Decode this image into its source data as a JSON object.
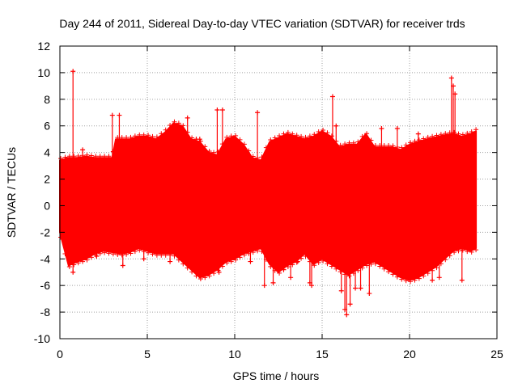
{
  "chart_data": {
    "type": "scatter",
    "title": "Day 244 of 2011, Sidereal Day-to-day VTEC variation (SDTVAR) for receiver trds",
    "xlabel": "GPS time / hours",
    "ylabel": "SDTVAR / TECUs",
    "xlim": [
      0,
      25
    ],
    "ylim": [
      -10,
      12
    ],
    "xticks": [
      "0",
      "5",
      "10",
      "15",
      "20",
      "25"
    ],
    "yticks": [
      "12",
      "10",
      "8",
      "6",
      "4",
      "2",
      "0",
      "-2",
      "-4",
      "-6",
      "-8",
      "-10"
    ],
    "grid": true,
    "marker": "+",
    "color": "#ff0000",
    "series": [
      {
        "name": "SDTVAR",
        "band_upper": [
          [
            0,
            3.4
          ],
          [
            0.5,
            3.6
          ],
          [
            1,
            3.6
          ],
          [
            1.5,
            3.7
          ],
          [
            2,
            3.6
          ],
          [
            2.5,
            3.6
          ],
          [
            3,
            3.6
          ],
          [
            3.2,
            5.0
          ],
          [
            3.5,
            5.0
          ],
          [
            4,
            5.0
          ],
          [
            4.5,
            5.2
          ],
          [
            5,
            5.2
          ],
          [
            5.5,
            5.0
          ],
          [
            6,
            5.5
          ],
          [
            6.5,
            6.2
          ],
          [
            7,
            6.0
          ],
          [
            7.5,
            5.0
          ],
          [
            8,
            4.8
          ],
          [
            8.5,
            4.0
          ],
          [
            9,
            3.8
          ],
          [
            9.5,
            5.0
          ],
          [
            10,
            5.2
          ],
          [
            10.5,
            4.6
          ],
          [
            11,
            3.6
          ],
          [
            11.5,
            3.4
          ],
          [
            12,
            4.8
          ],
          [
            13,
            5.4
          ],
          [
            14,
            5.0
          ],
          [
            14.5,
            5.2
          ],
          [
            15,
            5.6
          ],
          [
            15.5,
            5.2
          ],
          [
            16,
            4.4
          ],
          [
            16.5,
            4.6
          ],
          [
            17,
            4.6
          ],
          [
            17.5,
            5.4
          ],
          [
            18,
            4.4
          ],
          [
            18.5,
            4.4
          ],
          [
            19,
            4.4
          ],
          [
            19.5,
            4.2
          ],
          [
            20,
            4.6
          ],
          [
            21,
            5.0
          ],
          [
            22,
            5.3
          ],
          [
            22.5,
            5.4
          ],
          [
            23,
            5.2
          ],
          [
            23.5,
            5.4
          ],
          [
            23.8,
            5.6
          ]
        ],
        "band_lower": [
          [
            0,
            -2.0
          ],
          [
            0.5,
            -4.5
          ],
          [
            1,
            -4.2
          ],
          [
            1.5,
            -4.0
          ],
          [
            2,
            -3.6
          ],
          [
            2.5,
            -3.4
          ],
          [
            3,
            -3.5
          ],
          [
            3.5,
            -3.6
          ],
          [
            4,
            -3.5
          ],
          [
            4.5,
            -3.2
          ],
          [
            5,
            -3.4
          ],
          [
            5.5,
            -3.6
          ],
          [
            6,
            -3.6
          ],
          [
            6.5,
            -3.6
          ],
          [
            7,
            -4.2
          ],
          [
            7.5,
            -4.8
          ],
          [
            8,
            -5.4
          ],
          [
            8.5,
            -5.2
          ],
          [
            9,
            -4.8
          ],
          [
            9.5,
            -4.2
          ],
          [
            10,
            -4.0
          ],
          [
            10.5,
            -3.6
          ],
          [
            11,
            -3.4
          ],
          [
            11.5,
            -3.2
          ],
          [
            12,
            -4.4
          ],
          [
            12.5,
            -5.0
          ],
          [
            13,
            -4.5
          ],
          [
            13.5,
            -4.2
          ],
          [
            14,
            -3.6
          ],
          [
            14.5,
            -4.4
          ],
          [
            15,
            -4.0
          ],
          [
            15.5,
            -4.4
          ],
          [
            16,
            -4.8
          ],
          [
            16.5,
            -5.2
          ],
          [
            17,
            -4.8
          ],
          [
            17.5,
            -4.4
          ],
          [
            18,
            -4.2
          ],
          [
            18.5,
            -4.6
          ],
          [
            19,
            -5.0
          ],
          [
            19.5,
            -5.4
          ],
          [
            20,
            -5.6
          ],
          [
            20.5,
            -5.4
          ],
          [
            21,
            -5.0
          ],
          [
            21.5,
            -4.6
          ],
          [
            22,
            -4.0
          ],
          [
            22.5,
            -3.4
          ],
          [
            23,
            -3.2
          ],
          [
            23.5,
            -3.4
          ],
          [
            23.8,
            -3.2
          ]
        ],
        "spikes": [
          [
            0.75,
            10.1
          ],
          [
            0.75,
            -5.0
          ],
          [
            1.3,
            4.2
          ],
          [
            2.1,
            -3.8
          ],
          [
            3.0,
            6.8
          ],
          [
            3.4,
            6.8
          ],
          [
            3.6,
            -4.5
          ],
          [
            4.7,
            4.6
          ],
          [
            4.8,
            -4.0
          ],
          [
            6.3,
            -4.2
          ],
          [
            6.7,
            5.4
          ],
          [
            7.3,
            6.6
          ],
          [
            7.8,
            5.0
          ],
          [
            8.0,
            5.0
          ],
          [
            9.0,
            7.2
          ],
          [
            9.3,
            7.2
          ],
          [
            9.1,
            -5.0
          ],
          [
            10.3,
            4.6
          ],
          [
            10.9,
            -4.2
          ],
          [
            11.3,
            7.0
          ],
          [
            11.6,
            2.5
          ],
          [
            11.7,
            -6.0
          ],
          [
            12.2,
            -5.8
          ],
          [
            12.8,
            -4.8
          ],
          [
            13.0,
            -4.4
          ],
          [
            13.2,
            -5.4
          ],
          [
            13.6,
            -4.2
          ],
          [
            14.3,
            -5.8
          ],
          [
            14.4,
            -6.0
          ],
          [
            15.6,
            8.2
          ],
          [
            15.8,
            6.0
          ],
          [
            16.1,
            -6.4
          ],
          [
            16.3,
            -7.8
          ],
          [
            16.4,
            -8.2
          ],
          [
            16.6,
            -7.4
          ],
          [
            16.9,
            -6.2
          ],
          [
            17.2,
            -6.2
          ],
          [
            17.7,
            -6.6
          ],
          [
            18.4,
            5.8
          ],
          [
            19.3,
            5.8
          ],
          [
            19.5,
            -5.0
          ],
          [
            20.5,
            5.4
          ],
          [
            21.3,
            -5.6
          ],
          [
            21.7,
            -5.4
          ],
          [
            22.4,
            9.6
          ],
          [
            22.5,
            9.0
          ],
          [
            22.6,
            8.4
          ],
          [
            23.0,
            -5.6
          ]
        ]
      }
    ]
  }
}
